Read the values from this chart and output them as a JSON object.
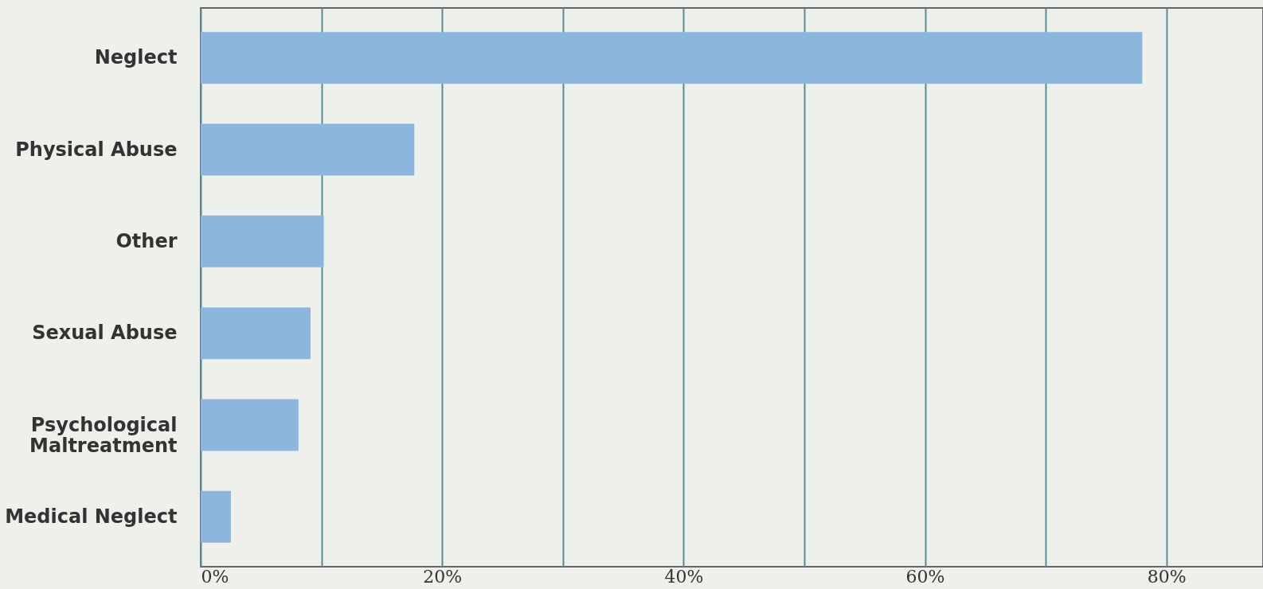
{
  "chart_data": {
    "type": "bar",
    "orientation": "horizontal",
    "categories": [
      "Neglect",
      "Physical Abuse",
      "Other",
      "Sexual Abuse",
      "Psychological Maltreatment",
      "Medical Neglect"
    ],
    "values": [
      78,
      17.7,
      10.2,
      9.1,
      8.1,
      2.5
    ],
    "color": "#8db6de",
    "xlim": [
      0,
      88
    ],
    "xticks": [
      {
        "value": 0,
        "label": "0%"
      },
      {
        "value": 10,
        "label": null
      },
      {
        "value": 20,
        "label": "20%"
      },
      {
        "value": 30,
        "label": null
      },
      {
        "value": 40,
        "label": "40%"
      },
      {
        "value": 50,
        "label": null
      },
      {
        "value": 60,
        "label": "60%"
      },
      {
        "value": 70,
        "label": null
      },
      {
        "value": 80,
        "label": "80%"
      }
    ],
    "grid": "x"
  }
}
